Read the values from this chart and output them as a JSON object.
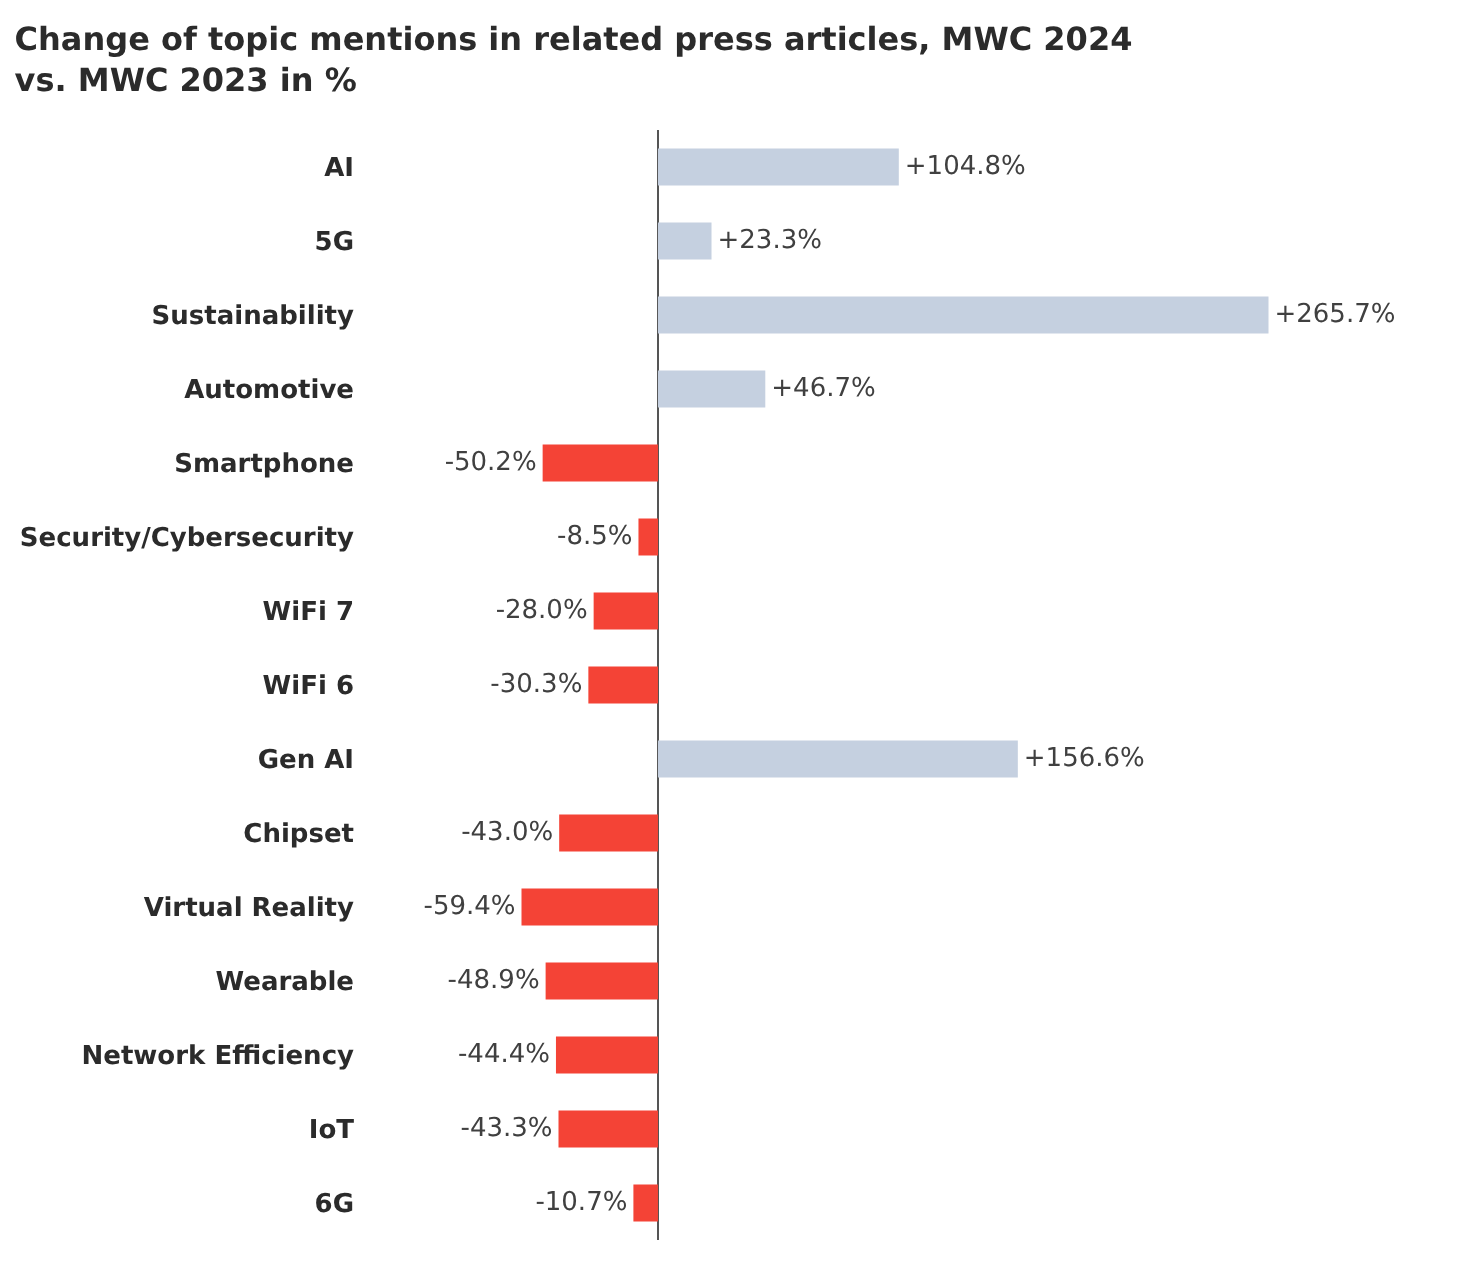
{
  "chart_data": {
    "type": "bar",
    "orientation": "horizontal",
    "title": "Change of topic mentions in related press articles, MWC 2024\nvs. MWC 2023 in %",
    "categories": [
      "AI",
      "5G",
      "Sustainability",
      "Automotive",
      "Smartphone",
      "Security/Cybersecurity",
      "WiFi 7",
      "WiFi 6",
      "Gen AI",
      "Chipset",
      "Virtual Reality",
      "Wearable",
      "Network Efficiency",
      "IoT",
      "6G"
    ],
    "values": [
      104.8,
      23.3,
      265.7,
      46.7,
      -50.2,
      -8.5,
      -28.0,
      -30.3,
      156.6,
      -43.0,
      -59.4,
      -48.9,
      -44.4,
      -43.3,
      -10.7
    ],
    "value_labels": [
      "+104.8%",
      "+23.3%",
      "+265.7%",
      "+46.7%",
      "-50.2%",
      "-8.5%",
      "-28.0%",
      "-30.3%",
      "+156.6%",
      "-43.0%",
      "-59.4%",
      "-48.9%",
      "-44.4%",
      "-43.3%",
      "-10.7%"
    ],
    "colors": [
      "#c5d0e0",
      "#c5d0e0",
      "#c5d0e0",
      "#c5d0e0",
      "#f44336",
      "#f44336",
      "#f44336",
      "#f44336",
      "#c5d0e0",
      "#f44336",
      "#f44336",
      "#f44336",
      "#f44336",
      "#f44336",
      "#f44336"
    ],
    "tick_labels": "y"
  }
}
